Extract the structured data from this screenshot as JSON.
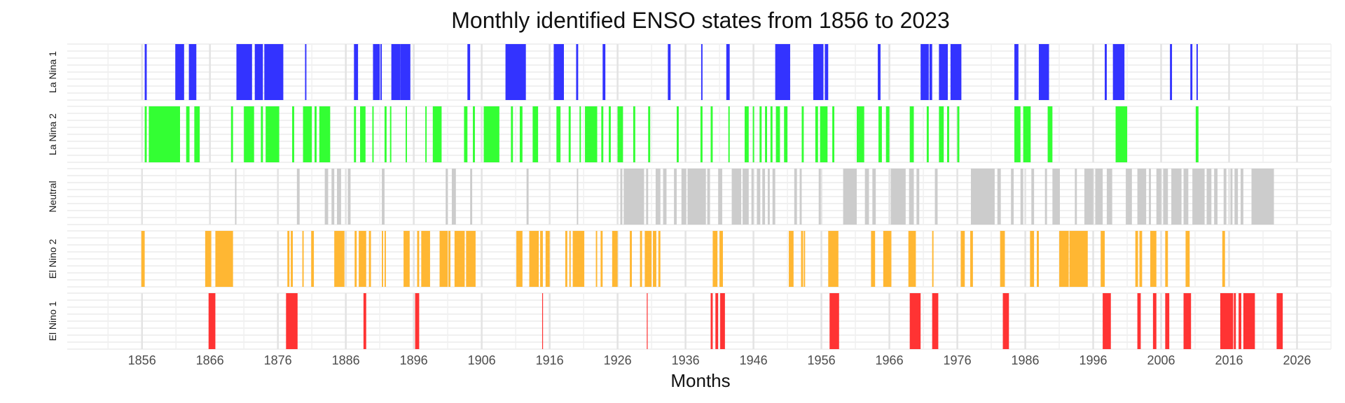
{
  "chart_data": {
    "type": "bar",
    "title": "Monthly identified ENSO states from 1856 to 2023",
    "xlabel": "Months",
    "ylabel": "",
    "xlim": [
      1845,
      2031
    ],
    "x_ticks": [
      "1856",
      "1866",
      "1876",
      "1886",
      "1896",
      "1906",
      "1916",
      "1926",
      "1936",
      "1946",
      "1956",
      "1966",
      "1976",
      "1986",
      "1996",
      "2006",
      "2016",
      "2026"
    ],
    "grid": true,
    "legend": "none",
    "series": [
      {
        "name": "La Nina 1",
        "color": "#3333ff",
        "periods": [
          [
            1856.4,
            1856.7
          ],
          [
            1860.9,
            1862.2
          ],
          [
            1862.9,
            1864.0
          ],
          [
            1869.9,
            1872.2
          ],
          [
            1872.6,
            1873.8
          ],
          [
            1874.0,
            1876.8
          ],
          [
            1880.0,
            1880.2
          ],
          [
            1887.2,
            1887.8
          ],
          [
            1890.0,
            1891.0
          ],
          [
            1891.1,
            1891.3
          ],
          [
            1892.7,
            1894.0
          ],
          [
            1894.0,
            1895.5
          ],
          [
            1903.9,
            1904.3
          ],
          [
            1909.5,
            1912.5
          ],
          [
            1916.6,
            1918.1
          ],
          [
            1919.9,
            1920.2
          ],
          [
            1923.8,
            1924.2
          ],
          [
            1933.4,
            1933.8
          ],
          [
            1938.3,
            1938.5
          ],
          [
            1942.0,
            1942.5
          ],
          [
            1949.2,
            1951.4
          ],
          [
            1954.8,
            1956.3
          ],
          [
            1956.5,
            1957.0
          ],
          [
            1964.3,
            1964.7
          ],
          [
            1970.6,
            1971.8
          ],
          [
            1971.9,
            1972.3
          ],
          [
            1973.3,
            1974.6
          ],
          [
            1975.0,
            1976.6
          ],
          [
            1984.4,
            1985.0
          ],
          [
            1988.0,
            1989.5
          ],
          [
            1997.7,
            1998.0
          ],
          [
            1998.9,
            2000.6
          ],
          [
            2007.3,
            2007.6
          ],
          [
            2010.3,
            2010.6
          ],
          [
            2011.2,
            2011.4
          ]
        ]
      },
      {
        "name": "La Nina 2",
        "color": "#33ff33",
        "periods": [
          [
            1856.4,
            1856.7
          ],
          [
            1857.0,
            1861.6
          ],
          [
            1862.5,
            1863.0
          ],
          [
            1863.7,
            1864.5
          ],
          [
            1869.1,
            1869.4
          ],
          [
            1871.0,
            1872.5
          ],
          [
            1873.5,
            1873.8
          ],
          [
            1874.2,
            1876.2
          ],
          [
            1878.1,
            1878.4
          ],
          [
            1879.7,
            1881.0
          ],
          [
            1881.4,
            1881.7
          ],
          [
            1882.1,
            1883.7
          ],
          [
            1887.2,
            1887.5
          ],
          [
            1888.1,
            1888.9
          ],
          [
            1889.9,
            1890.1
          ],
          [
            1891.7,
            1892.0
          ],
          [
            1892.5,
            1892.7
          ],
          [
            1894.8,
            1895.0
          ],
          [
            1897.7,
            1897.9
          ],
          [
            1898.8,
            1900.1
          ],
          [
            1903.4,
            1903.9
          ],
          [
            1904.7,
            1905.0
          ],
          [
            1906.3,
            1908.6
          ],
          [
            1910.3,
            1910.6
          ],
          [
            1911.6,
            1912.0
          ],
          [
            1913.5,
            1914.3
          ],
          [
            1917.0,
            1917.6
          ],
          [
            1918.8,
            1919.1
          ],
          [
            1920.4,
            1920.6
          ],
          [
            1921.2,
            1923.0
          ],
          [
            1923.6,
            1923.9
          ],
          [
            1924.7,
            1925.0
          ],
          [
            1926.0,
            1926.8
          ],
          [
            1928.3,
            1928.6
          ],
          [
            1930.5,
            1930.8
          ],
          [
            1934.7,
            1935.0
          ],
          [
            1938.2,
            1938.5
          ],
          [
            1939.7,
            1940.0
          ],
          [
            1942.3,
            1942.5
          ],
          [
            1944.7,
            1945.3
          ],
          [
            1945.9,
            1946.1
          ],
          [
            1946.9,
            1947.2
          ],
          [
            1947.7,
            1948.0
          ],
          [
            1948.5,
            1948.8
          ],
          [
            1949.3,
            1949.9
          ],
          [
            1950.5,
            1951.0
          ],
          [
            1953.1,
            1953.4
          ],
          [
            1955.1,
            1955.5
          ],
          [
            1955.8,
            1956.9
          ],
          [
            1957.6,
            1957.9
          ],
          [
            1961.2,
            1962.3
          ],
          [
            1964.4,
            1964.9
          ],
          [
            1965.5,
            1966.0
          ],
          [
            1969.0,
            1969.6
          ],
          [
            1971.5,
            1971.8
          ],
          [
            1973.3,
            1974.0
          ],
          [
            1974.5,
            1974.8
          ],
          [
            1976.0,
            1976.3
          ],
          [
            1984.4,
            1985.3
          ],
          [
            1985.7,
            1986.8
          ],
          [
            1989.3,
            1990.0
          ],
          [
            1999.3,
            2001.0
          ],
          [
            2011.1,
            2011.5
          ]
        ]
      },
      {
        "name": "Neutral",
        "color": "#cccccc",
        "periods": [
          [
            1869.7,
            1869.9
          ],
          [
            1878.8,
            1879.2
          ],
          [
            1882.9,
            1883.4
          ],
          [
            1883.9,
            1884.3
          ],
          [
            1884.7,
            1885.3
          ],
          [
            1886.3,
            1886.7
          ],
          [
            1891.3,
            1891.7
          ],
          [
            1900.7,
            1901.0
          ],
          [
            1901.6,
            1902.2
          ],
          [
            1904.3,
            1904.6
          ],
          [
            1912.6,
            1912.9
          ],
          [
            1920.0,
            1920.2
          ],
          [
            1926.4,
            1926.7
          ],
          [
            1926.9,
            1929.9
          ],
          [
            1930.2,
            1930.5
          ],
          [
            1931.6,
            1932.3
          ],
          [
            1932.7,
            1933.2
          ],
          [
            1934.3,
            1934.7
          ],
          [
            1935.4,
            1936.1
          ],
          [
            1936.3,
            1939.0
          ],
          [
            1939.2,
            1939.6
          ],
          [
            1940.8,
            1941.4
          ],
          [
            1942.8,
            1944.2
          ],
          [
            1944.4,
            1945.3
          ],
          [
            1945.7,
            1946.0
          ],
          [
            1946.5,
            1947.0
          ],
          [
            1947.3,
            1947.7
          ],
          [
            1948.1,
            1948.4
          ],
          [
            1948.8,
            1949.2
          ],
          [
            1952.0,
            1952.4
          ],
          [
            1952.8,
            1953.1
          ],
          [
            1955.6,
            1955.9
          ],
          [
            1959.2,
            1961.2
          ],
          [
            1962.4,
            1963.0
          ],
          [
            1963.5,
            1964.0
          ],
          [
            1966.2,
            1968.4
          ],
          [
            1968.9,
            1969.6
          ],
          [
            1970.0,
            1970.4
          ],
          [
            1972.7,
            1973.1
          ],
          [
            1978.0,
            1981.5
          ],
          [
            1981.9,
            1982.4
          ],
          [
            1983.9,
            1984.3
          ],
          [
            1985.3,
            1985.7
          ],
          [
            1986.9,
            1987.3
          ],
          [
            1988.9,
            1989.2
          ],
          [
            1990.0,
            1991.1
          ],
          [
            1993.3,
            1993.6
          ],
          [
            1994.7,
            1996.0
          ],
          [
            1996.3,
            1997.4
          ],
          [
            1998.0,
            1998.8
          ],
          [
            2000.8,
            2001.7
          ],
          [
            2002.5,
            2003.8
          ],
          [
            2004.2,
            2004.5
          ],
          [
            2005.3,
            2006.0
          ],
          [
            2006.3,
            2007.0
          ],
          [
            2007.5,
            2009.0
          ],
          [
            2009.3,
            2010.0
          ],
          [
            2010.6,
            2012.4
          ],
          [
            2012.7,
            2013.4
          ],
          [
            2013.8,
            2014.3
          ],
          [
            2015.2,
            2015.6
          ],
          [
            2016.2,
            2016.5
          ],
          [
            2016.8,
            2017.3
          ],
          [
            2017.7,
            2018.1
          ],
          [
            2019.3,
            2022.6
          ]
        ]
      },
      {
        "name": "El Nino 2",
        "color": "#ffb733",
        "periods": [
          [
            1855.9,
            1856.4
          ],
          [
            1865.3,
            1866.2
          ],
          [
            1866.8,
            1869.4
          ],
          [
            1877.4,
            1877.7
          ],
          [
            1877.9,
            1878.2
          ],
          [
            1879.6,
            1879.8
          ],
          [
            1880.9,
            1881.3
          ],
          [
            1884.3,
            1885.8
          ],
          [
            1887.3,
            1887.6
          ],
          [
            1887.9,
            1889.0
          ],
          [
            1889.4,
            1889.7
          ],
          [
            1891.3,
            1891.5
          ],
          [
            1891.7,
            1891.9
          ],
          [
            1894.5,
            1895.4
          ],
          [
            1896.5,
            1896.8
          ],
          [
            1897.1,
            1898.4
          ],
          [
            1899.8,
            1901.0
          ],
          [
            1901.1,
            1901.4
          ],
          [
            1902.0,
            1903.5
          ],
          [
            1903.7,
            1905.1
          ],
          [
            1911.1,
            1912.0
          ],
          [
            1913.0,
            1914.4
          ],
          [
            1914.6,
            1915.0
          ],
          [
            1915.4,
            1916.0
          ],
          [
            1918.3,
            1918.6
          ],
          [
            1918.9,
            1919.1
          ],
          [
            1919.4,
            1921.1
          ],
          [
            1922.8,
            1923.0
          ],
          [
            1923.5,
            1923.8
          ],
          [
            1925.2,
            1926.0
          ],
          [
            1927.8,
            1928.1
          ],
          [
            1929.3,
            1929.6
          ],
          [
            1930.0,
            1931.0
          ],
          [
            1931.2,
            1931.7
          ],
          [
            1932.0,
            1932.3
          ],
          [
            1940.0,
            1940.7
          ],
          [
            1941.0,
            1941.5
          ],
          [
            1951.2,
            1951.9
          ],
          [
            1953.0,
            1953.3
          ],
          [
            1953.4,
            1953.6
          ],
          [
            1957.0,
            1958.5
          ],
          [
            1963.3,
            1963.9
          ],
          [
            1965.1,
            1966.3
          ],
          [
            1968.8,
            1969.9
          ],
          [
            1972.3,
            1972.5
          ],
          [
            1976.5,
            1977.1
          ],
          [
            1977.9,
            1978.3
          ],
          [
            1982.3,
            1983.0
          ],
          [
            1986.7,
            1987.3
          ],
          [
            1987.7,
            1988.0
          ],
          [
            1991.0,
            1992.4
          ],
          [
            1992.5,
            1995.2
          ],
          [
            1997.1,
            1997.7
          ],
          [
            2002.2,
            2002.6
          ],
          [
            2002.8,
            2003.2
          ],
          [
            2004.4,
            2005.3
          ],
          [
            2006.6,
            2007.0
          ],
          [
            2009.6,
            2010.2
          ],
          [
            2015.0,
            2015.4
          ]
        ]
      },
      {
        "name": "El Nino 1",
        "color": "#ff3333",
        "periods": [
          [
            1865.8,
            1866.8
          ],
          [
            1877.2,
            1878.9
          ],
          [
            1888.6,
            1889.0
          ],
          [
            1896.2,
            1896.8
          ],
          [
            1914.9,
            1915.0
          ],
          [
            1930.3,
            1930.4
          ],
          [
            1939.7,
            1940.0
          ],
          [
            1940.4,
            1940.8
          ],
          [
            1941.1,
            1941.8
          ],
          [
            1957.2,
            1958.6
          ],
          [
            1969.0,
            1970.6
          ],
          [
            1972.3,
            1973.2
          ],
          [
            1982.7,
            1983.6
          ],
          [
            1997.4,
            1998.6
          ],
          [
            2002.5,
            2003.0
          ],
          [
            2004.8,
            2005.3
          ],
          [
            2006.6,
            2007.2
          ],
          [
            2009.3,
            2010.4
          ],
          [
            2014.7,
            2016.6
          ],
          [
            2016.7,
            2017.0
          ],
          [
            2017.4,
            2017.8
          ],
          [
            2018.1,
            2019.8
          ],
          [
            2023.0,
            2023.9
          ]
        ]
      }
    ]
  }
}
